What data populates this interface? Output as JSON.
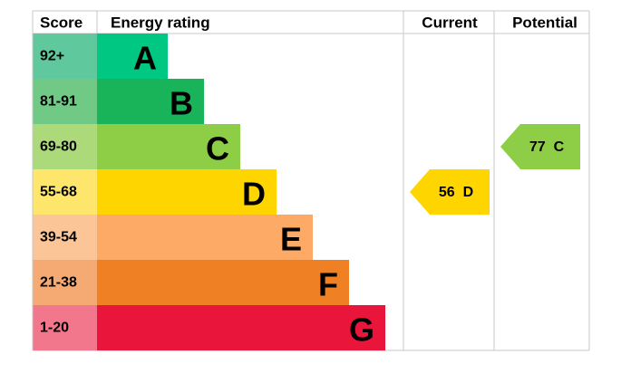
{
  "header": {
    "score": "Score",
    "rating": "Energy rating",
    "current": "Current",
    "potential": "Potential"
  },
  "bands": [
    {
      "score": "92+",
      "letter": "A",
      "color": "#00c781",
      "score_color": "#5fc89c"
    },
    {
      "score": "81-91",
      "letter": "B",
      "color": "#19b459",
      "score_color": "#70c985"
    },
    {
      "score": "69-80",
      "letter": "C",
      "color": "#8dce46",
      "score_color": "#acd97a"
    },
    {
      "score": "55-68",
      "letter": "D",
      "color": "#ffd500",
      "score_color": "#fde66b"
    },
    {
      "score": "39-54",
      "letter": "E",
      "color": "#fcaa65",
      "score_color": "#fbc597"
    },
    {
      "score": "21-38",
      "letter": "F",
      "color": "#ef8023",
      "score_color": "#f5aa73"
    },
    {
      "score": "1-20",
      "letter": "G",
      "color": "#e9153b",
      "score_color": "#f2778c"
    }
  ],
  "current": {
    "score": 56,
    "rating": "D"
  },
  "potential": {
    "score": 77,
    "rating": "C"
  }
}
